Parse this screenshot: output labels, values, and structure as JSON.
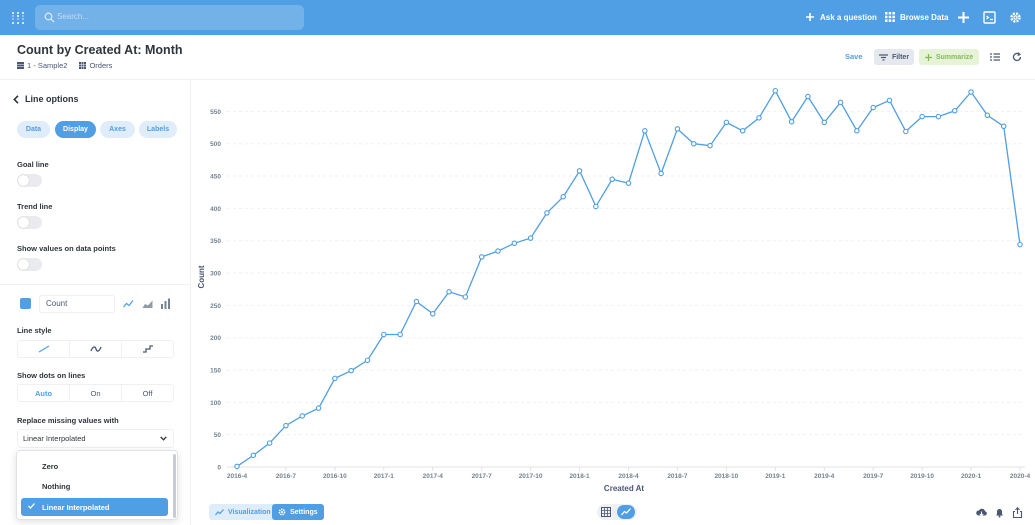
{
  "nav": {
    "search_placeholder": "Search...",
    "ask_question": "Ask a question",
    "browse_data": "Browse Data"
  },
  "header": {
    "title": "Count by Created At: Month",
    "database": "1 - Sample2",
    "table": "Orders",
    "save": "Save",
    "filter": "Filter",
    "summarize": "Summarize"
  },
  "sidebar": {
    "back_label": "Line options",
    "tabs": [
      "Data",
      "Display",
      "Axes",
      "Labels"
    ],
    "active_tab": "Display",
    "goal_line": "Goal line",
    "trend_line": "Trend line",
    "show_values": "Show values on data points",
    "series_name": "Count",
    "line_style": "Line style",
    "show_dots": "Show dots on lines",
    "dots_options": [
      "Auto",
      "On",
      "Off"
    ],
    "dots_selected": "Auto",
    "replace_missing": "Replace missing values with",
    "replace_selected": "Linear Interpolated",
    "replace_options": [
      "Zero",
      "Nothing",
      "Linear Interpolated"
    ]
  },
  "footer": {
    "visualization": "Visualization",
    "settings": "Settings"
  },
  "colors": {
    "brand": "#509ee3",
    "summarize": "#84bb4c"
  },
  "chart_data": {
    "type": "line",
    "xlabel": "Created At",
    "ylabel": "Count",
    "ylim": [
      0,
      550
    ],
    "yticks": [
      0,
      50,
      100,
      150,
      200,
      250,
      300,
      350,
      400,
      450,
      500,
      550
    ],
    "xticks": [
      "2016-4",
      "2016-7",
      "2016-10",
      "2017-1",
      "2017-4",
      "2017-7",
      "2017-10",
      "2018-1",
      "2018-4",
      "2018-7",
      "2018-10",
      "2019-1",
      "2019-4",
      "2019-7",
      "2019-10",
      "2020-1",
      "2020-4"
    ],
    "series": [
      {
        "name": "Count",
        "x": [
          "2016-4",
          "2016-5",
          "2016-6",
          "2016-7",
          "2016-8",
          "2016-9",
          "2016-10",
          "2016-11",
          "2016-12",
          "2017-1",
          "2017-2",
          "2017-3",
          "2017-4",
          "2017-5",
          "2017-6",
          "2017-7",
          "2017-8",
          "2017-9",
          "2017-10",
          "2017-11",
          "2017-12",
          "2018-1",
          "2018-2",
          "2018-3",
          "2018-4",
          "2018-5",
          "2018-6",
          "2018-7",
          "2018-8",
          "2018-9",
          "2018-10",
          "2018-11",
          "2018-12",
          "2019-1",
          "2019-2",
          "2019-3",
          "2019-4",
          "2019-5",
          "2019-6",
          "2019-7",
          "2019-8",
          "2019-9",
          "2019-10",
          "2019-11",
          "2019-12",
          "2020-1",
          "2020-2",
          "2020-3",
          "2020-4"
        ],
        "values": [
          1,
          18,
          37,
          64,
          79,
          91,
          137,
          149,
          165,
          205,
          205,
          256,
          237,
          271,
          263,
          325,
          334,
          346,
          354,
          393,
          418,
          458,
          403,
          445,
          439,
          520,
          454,
          523,
          500,
          497,
          533,
          520,
          540,
          582,
          534,
          573,
          533,
          564,
          520,
          556,
          567,
          519,
          542,
          542,
          551,
          580,
          544,
          527,
          344
        ]
      }
    ]
  }
}
